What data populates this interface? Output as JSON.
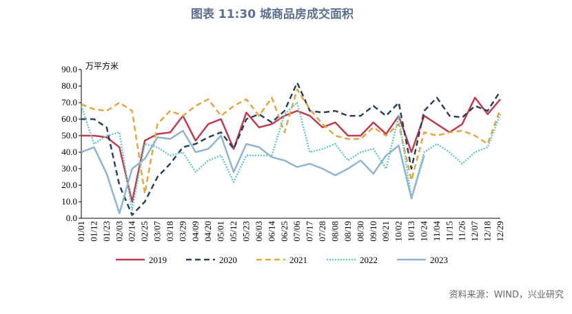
{
  "chart_data": {
    "type": "line",
    "title": "图表 11:30 城商品房成交面积",
    "unit_label": "万平方米",
    "source": "资料来源：WIND，兴业研究",
    "categories": [
      "01/01",
      "01/12",
      "01/23",
      "02/03",
      "02/14",
      "02/25",
      "03/07",
      "03/18",
      "03/29",
      "04/09",
      "04/20",
      "05/01",
      "05/12",
      "05/23",
      "06/03",
      "06/14",
      "06/25",
      "07/06",
      "07/17",
      "07/28",
      "08/08",
      "08/19",
      "08/30",
      "09/10",
      "09/21",
      "10/02",
      "10/13",
      "10/24",
      "11/04",
      "11/15",
      "11/26",
      "12/07",
      "12/18",
      "12/29"
    ],
    "ylim": [
      0,
      90
    ],
    "yticks": [
      {
        "value": 0,
        "label": "0.0"
      },
      {
        "value": 10,
        "label": "10.0"
      },
      {
        "value": 20,
        "label": "20.0"
      },
      {
        "value": 30,
        "label": "30.0"
      },
      {
        "value": 40,
        "label": "40.0"
      },
      {
        "value": 50,
        "label": "50.0"
      },
      {
        "value": 60,
        "label": "60.0"
      },
      {
        "value": 70,
        "label": "70.0"
      },
      {
        "value": 80,
        "label": "80.0"
      },
      {
        "value": 90,
        "label": "90.0"
      }
    ],
    "series": [
      {
        "name": "2019",
        "color": "#c0394d",
        "style": "solid",
        "values": [
          50,
          50,
          49,
          43,
          10,
          47,
          51,
          52,
          62,
          47,
          57,
          60,
          42,
          64,
          55,
          57,
          62,
          65,
          62,
          55,
          58,
          50,
          50,
          58,
          51,
          62,
          40,
          62,
          57,
          52,
          57,
          73,
          63,
          72
        ]
      },
      {
        "name": "2020",
        "color": "#2b3f5e",
        "style": "dashed",
        "values": [
          60,
          60,
          55,
          20,
          2,
          10,
          25,
          33,
          43,
          45,
          49,
          52,
          42,
          60,
          63,
          58,
          65,
          82,
          65,
          64,
          65,
          62,
          62,
          68,
          62,
          70,
          30,
          65,
          73,
          62,
          61,
          68,
          65,
          77
        ]
      },
      {
        "name": "2021",
        "color": "#e8a33a",
        "style": "dashed",
        "values": [
          69,
          66,
          65,
          70,
          65,
          15,
          57,
          65,
          62,
          68,
          72,
          62,
          68,
          72,
          62,
          73,
          52,
          78,
          66,
          57,
          50,
          48,
          48,
          55,
          50,
          57,
          23,
          52,
          50,
          52,
          53,
          50,
          45,
          66
        ]
      },
      {
        "name": "2022",
        "color": "#5fc9c8",
        "style": "dotted",
        "values": [
          68,
          45,
          50,
          52,
          5,
          45,
          43,
          38,
          40,
          28,
          35,
          38,
          22,
          38,
          38,
          38,
          63,
          70,
          40,
          42,
          45,
          35,
          40,
          42,
          30,
          62,
          12,
          40,
          45,
          40,
          33,
          40,
          43,
          63
        ]
      },
      {
        "name": "2023",
        "color": "#8fb3d3",
        "style": "solid",
        "values": [
          40,
          43,
          27,
          3,
          30,
          36,
          49,
          48,
          53,
          40,
          42,
          50,
          28,
          45,
          43,
          37,
          35,
          31,
          33,
          30,
          26,
          30,
          35,
          27,
          38,
          44,
          12,
          38,
          null,
          null,
          null,
          null,
          null,
          null
        ]
      }
    ]
  }
}
